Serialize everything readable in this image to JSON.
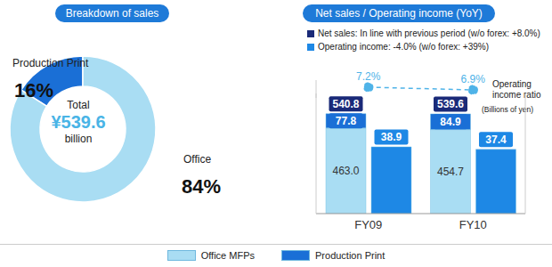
{
  "chart_data": [
    {
      "type": "pie",
      "title": "Breakdown of sales",
      "categories": [
        "Production Print",
        "Office"
      ],
      "values": [
        16,
        84
      ],
      "value_labels": [
        "16%",
        "84%"
      ],
      "colors": [
        "#1a6fd6",
        "#a9ddf3"
      ],
      "data_labels": true,
      "annotations": [
        "Total",
        "¥539.6",
        "billion"
      ]
    },
    {
      "type": "bar",
      "title": "Net sales / Operating income (YoY)",
      "subtitle": [
        "Net sales: In line with previous period (w/o forex: +8.0%)",
        "Operating income: -4.0% (w/o forex: +39%)"
      ],
      "annotations": [
        "(Billions of yen)"
      ],
      "categories": [
        "FY09",
        "FY10"
      ],
      "stacked": true,
      "data_labels": true,
      "tick_labels": "x",
      "ylim": [
        0,
        650
      ],
      "yticks": [],
      "y2lim": [
        0,
        70
      ],
      "y2ticks": [],
      "totals": [
        540.8,
        539.6
      ],
      "series": [
        {
          "name": "Office MFPs",
          "color": "#a9ddf3",
          "values": [
            463.0,
            454.7
          ],
          "value_labels": [
            "463.0",
            "454.7"
          ]
        },
        {
          "name": "Production Print",
          "color": "#1a6fd6",
          "values": [
            77.8,
            84.9
          ]
        },
        {
          "type": "bar",
          "axis": "y2",
          "stacked": false,
          "color": "#1e88e5",
          "values": [
            38.9,
            37.4
          ]
        }
      ]
    },
    {
      "type": "line",
      "categories": [
        "FY09",
        "FY10"
      ],
      "tick_labels": false,
      "ylim": [
        6,
        8
      ],
      "yticks": [],
      "data_labels": true,
      "series": [
        {
          "name": "Operating income ratio",
          "color": "#4fb3e8",
          "line_style": "dashed",
          "marker": "circle",
          "values": [
            7.2,
            6.9
          ],
          "value_labels": [
            "7.2%",
            "6.9%"
          ]
        }
      ]
    }
  ]
}
